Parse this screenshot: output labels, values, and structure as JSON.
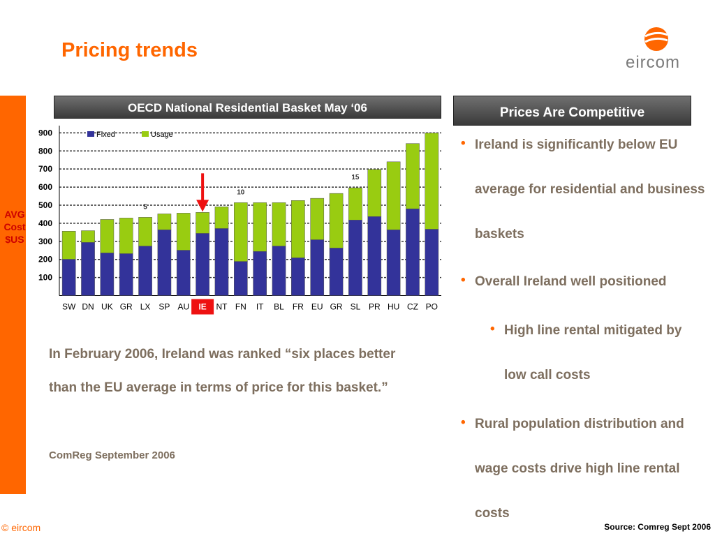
{
  "title": "Pricing trends",
  "logo": "eircom",
  "axis_caption": [
    "AVG",
    "Cost",
    "$US"
  ],
  "chart_data": {
    "type": "bar",
    "stacked": true,
    "title": "OECD National Residential Basket May ‘06",
    "categories": [
      "SW",
      "DN",
      "UK",
      "GR",
      "LX",
      "SP",
      "AU",
      "IE",
      "NT",
      "FN",
      "IT",
      "BL",
      "FR",
      "EU",
      "GR",
      "SL",
      "PR",
      "HU",
      "CZ",
      "PO"
    ],
    "series": [
      {
        "name": "Fixed",
        "color": "#33339a",
        "values": [
          201,
          294,
          236,
          232,
          274,
          364,
          251,
          344,
          371,
          189,
          244,
          274,
          209,
          309,
          263,
          418,
          437,
          364,
          480,
          367
        ]
      },
      {
        "name": "Usage",
        "color": "#99cc11",
        "values": [
          155,
          65,
          185,
          197,
          159,
          88,
          205,
          116,
          120,
          325,
          270,
          240,
          317,
          229,
          302,
          178,
          261,
          376,
          361,
          532
        ]
      }
    ],
    "ylim": [
      0,
      940
    ],
    "yticks": [
      100,
      200,
      300,
      400,
      500,
      600,
      700,
      800,
      900
    ],
    "grid": true,
    "legend": "top-left",
    "highlight_index": 7,
    "highlight_color": "#ee1111",
    "annotations": [
      {
        "text": "5",
        "index": 4
      },
      {
        "text": "10",
        "index": 9
      },
      {
        "text": "15",
        "index": 15
      }
    ]
  },
  "panel": {
    "title": "Prices Are Competitive",
    "bullets": [
      {
        "text": "Ireland is significantly below EU average for residential and business baskets",
        "level": 1
      },
      {
        "text": "Overall Ireland well positioned",
        "level": 1
      },
      {
        "text": "High line rental mitigated by low call costs",
        "level": 2
      },
      {
        "text": "Rural population distribution and wage costs drive high line rental costs",
        "level": 1
      }
    ]
  },
  "quote": "In February 2006, Ireland was ranked “six places better than the EU average in terms of price for this basket.”",
  "quote_source": "ComReg September 2006",
  "copyright": "© eircom",
  "source": "Source: Comreg Sept 2006"
}
